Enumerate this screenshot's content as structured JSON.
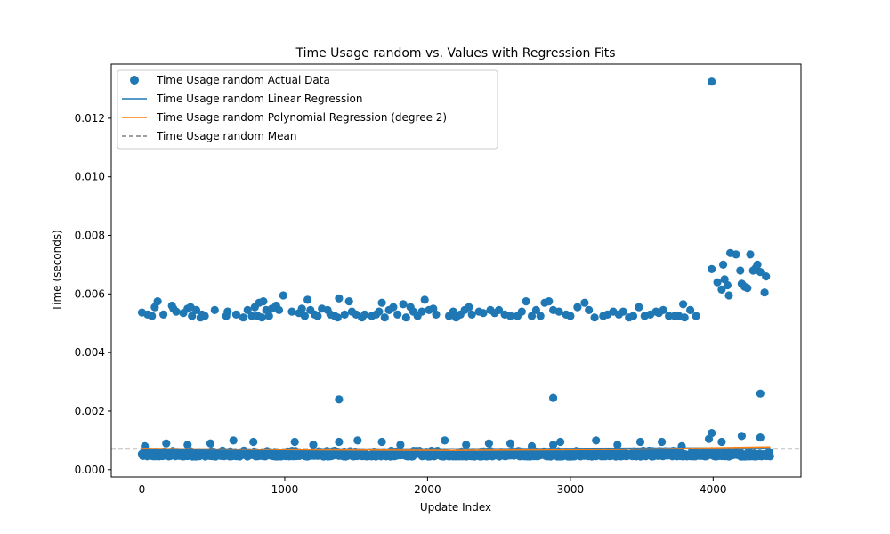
{
  "chart_data": {
    "type": "scatter",
    "title": "Time Usage random vs. Values with Regression Fits",
    "xlabel": "Update Index",
    "ylabel": "Time (seconds)",
    "xlim": [
      -215,
      4615
    ],
    "ylim": [
      -0.00025,
      0.01385
    ],
    "x_ticks": [
      0,
      1000,
      2000,
      3000,
      4000
    ],
    "x_tick_labels": [
      "0",
      "1000",
      "2000",
      "3000",
      "4000"
    ],
    "y_ticks": [
      0.0,
      0.002,
      0.004,
      0.006,
      0.008,
      0.01,
      0.012
    ],
    "y_tick_labels": [
      "0.000",
      "0.002",
      "0.004",
      "0.006",
      "0.008",
      "0.010",
      "0.012"
    ],
    "grid": false,
    "legend_position": "upper-left",
    "legend": [
      {
        "label": "Time Usage random Actual Data",
        "kind": "marker",
        "color": "#1f77b4"
      },
      {
        "label": "Time Usage random Linear Regression",
        "kind": "line",
        "color": "#1f77b4"
      },
      {
        "label": "Time Usage random Polynomial Regression (degree 2)",
        "kind": "line",
        "color": "#ff7f0e"
      },
      {
        "label": "Time Usage random Mean",
        "kind": "dashed",
        "color": "#808080"
      }
    ],
    "series": [
      {
        "name": "Time Usage random Actual Data",
        "kind": "scatter",
        "color": "#1f77b4",
        "upper_cluster": [
          [
            0,
            0.00537
          ],
          [
            40,
            0.0053
          ],
          [
            70,
            0.00525
          ],
          [
            90,
            0.00555
          ],
          [
            110,
            0.00575
          ],
          [
            150,
            0.0053
          ],
          [
            210,
            0.0056
          ],
          [
            220,
            0.0055
          ],
          [
            240,
            0.0054
          ],
          [
            290,
            0.00535
          ],
          [
            320,
            0.0055
          ],
          [
            340,
            0.00555
          ],
          [
            350,
            0.00525
          ],
          [
            380,
            0.00545
          ],
          [
            410,
            0.0052
          ],
          [
            420,
            0.0053
          ],
          [
            440,
            0.00525
          ],
          [
            510,
            0.00545
          ],
          [
            590,
            0.00525
          ],
          [
            600,
            0.0054
          ],
          [
            660,
            0.0053
          ],
          [
            710,
            0.0052
          ],
          [
            740,
            0.00545
          ],
          [
            770,
            0.00525
          ],
          [
            790,
            0.00555
          ],
          [
            810,
            0.00525
          ],
          [
            820,
            0.0057
          ],
          [
            840,
            0.0052
          ],
          [
            850,
            0.00575
          ],
          [
            870,
            0.00545
          ],
          [
            890,
            0.00525
          ],
          [
            910,
            0.0055
          ],
          [
            940,
            0.0056
          ],
          [
            960,
            0.00545
          ],
          [
            990,
            0.00595
          ],
          [
            1050,
            0.0054
          ],
          [
            1100,
            0.00535
          ],
          [
            1120,
            0.0055
          ],
          [
            1140,
            0.00525
          ],
          [
            1160,
            0.0058
          ],
          [
            1180,
            0.00545
          ],
          [
            1210,
            0.0053
          ],
          [
            1230,
            0.00525
          ],
          [
            1260,
            0.0055
          ],
          [
            1300,
            0.00545
          ],
          [
            1320,
            0.0053
          ],
          [
            1350,
            0.00525
          ],
          [
            1370,
            0.0052
          ],
          [
            1380,
            0.00585
          ],
          [
            1420,
            0.0053
          ],
          [
            1450,
            0.00575
          ],
          [
            1470,
            0.0054
          ],
          [
            1500,
            0.0053
          ],
          [
            1540,
            0.0052
          ],
          [
            1560,
            0.0053
          ],
          [
            1610,
            0.00525
          ],
          [
            1640,
            0.0053
          ],
          [
            1660,
            0.0054
          ],
          [
            1680,
            0.0057
          ],
          [
            1700,
            0.0052
          ],
          [
            1730,
            0.00545
          ],
          [
            1760,
            0.00555
          ],
          [
            1790,
            0.0053
          ],
          [
            1830,
            0.00565
          ],
          [
            1850,
            0.0052
          ],
          [
            1880,
            0.00555
          ],
          [
            1900,
            0.0054
          ],
          [
            1930,
            0.00525
          ],
          [
            1960,
            0.0054
          ],
          [
            1980,
            0.0058
          ],
          [
            2010,
            0.00545
          ],
          [
            2040,
            0.0055
          ],
          [
            2060,
            0.0053
          ],
          [
            2150,
            0.00525
          ],
          [
            2180,
            0.0054
          ],
          [
            2200,
            0.0052
          ],
          [
            2230,
            0.0053
          ],
          [
            2260,
            0.00545
          ],
          [
            2290,
            0.00555
          ],
          [
            2310,
            0.0053
          ],
          [
            2360,
            0.0054
          ],
          [
            2390,
            0.00535
          ],
          [
            2440,
            0.00545
          ],
          [
            2470,
            0.00535
          ],
          [
            2500,
            0.00545
          ],
          [
            2540,
            0.0053
          ],
          [
            2580,
            0.00525
          ],
          [
            2630,
            0.00525
          ],
          [
            2660,
            0.0054
          ],
          [
            2690,
            0.00575
          ],
          [
            2730,
            0.00525
          ],
          [
            2760,
            0.00545
          ],
          [
            2790,
            0.00525
          ],
          [
            2820,
            0.0057
          ],
          [
            2850,
            0.00575
          ],
          [
            2880,
            0.00545
          ],
          [
            2920,
            0.0054
          ],
          [
            2970,
            0.0053
          ],
          [
            3000,
            0.00525
          ],
          [
            3050,
            0.00555
          ],
          [
            3100,
            0.0057
          ],
          [
            3130,
            0.00545
          ],
          [
            3170,
            0.0052
          ],
          [
            3230,
            0.00525
          ],
          [
            3260,
            0.0053
          ],
          [
            3300,
            0.0054
          ],
          [
            3340,
            0.0053
          ],
          [
            3370,
            0.0054
          ],
          [
            3410,
            0.0052
          ],
          [
            3440,
            0.00525
          ],
          [
            3480,
            0.00555
          ],
          [
            3520,
            0.00525
          ],
          [
            3560,
            0.0053
          ],
          [
            3600,
            0.0054
          ],
          [
            3620,
            0.00535
          ],
          [
            3650,
            0.00545
          ],
          [
            3690,
            0.00525
          ],
          [
            3730,
            0.00525
          ],
          [
            3760,
            0.00525
          ],
          [
            3790,
            0.00565
          ],
          [
            3800,
            0.0052
          ],
          [
            3840,
            0.00545
          ],
          [
            3880,
            0.00525
          ]
        ],
        "tail_cluster": [
          [
            3990,
            0.00685
          ],
          [
            4030,
            0.0064
          ],
          [
            4060,
            0.00615
          ],
          [
            4070,
            0.007
          ],
          [
            4080,
            0.0065
          ],
          [
            4100,
            0.0063
          ],
          [
            4110,
            0.00595
          ],
          [
            4120,
            0.0074
          ],
          [
            4160,
            0.00735
          ],
          [
            4190,
            0.0068
          ],
          [
            4200,
            0.00635
          ],
          [
            4220,
            0.00625
          ],
          [
            4240,
            0.0062
          ],
          [
            4260,
            0.00735
          ],
          [
            4280,
            0.0068
          ],
          [
            4300,
            0.0069
          ],
          [
            4310,
            0.007
          ],
          [
            4330,
            0.00675
          ],
          [
            4360,
            0.00605
          ],
          [
            4370,
            0.0066
          ]
        ],
        "outliers": [
          [
            3990,
            0.01325
          ],
          [
            1380,
            0.0024
          ],
          [
            2880,
            0.00245
          ],
          [
            4330,
            0.0026
          ]
        ],
        "baseline_band": {
          "x_range": [
            0,
            4400
          ],
          "typical_min": 0.00045,
          "typical_max": 0.00065
        },
        "baseline_spikes": [
          [
            20,
            0.0008
          ],
          [
            170,
            0.0009
          ],
          [
            320,
            0.00085
          ],
          [
            480,
            0.0009
          ],
          [
            640,
            0.001
          ],
          [
            780,
            0.00095
          ],
          [
            1070,
            0.00095
          ],
          [
            1200,
            0.00085
          ],
          [
            1380,
            0.00095
          ],
          [
            1510,
            0.001
          ],
          [
            1680,
            0.00095
          ],
          [
            1810,
            0.00085
          ],
          [
            2120,
            0.001
          ],
          [
            2270,
            0.00085
          ],
          [
            2430,
            0.0009
          ],
          [
            2580,
            0.0009
          ],
          [
            2730,
            0.0008
          ],
          [
            2880,
            0.00085
          ],
          [
            2930,
            0.00095
          ],
          [
            3180,
            0.001
          ],
          [
            3330,
            0.00085
          ],
          [
            3490,
            0.00095
          ],
          [
            3640,
            0.00095
          ],
          [
            3780,
            0.0008
          ],
          [
            3970,
            0.00105
          ],
          [
            3990,
            0.00125
          ],
          [
            4060,
            0.00095
          ],
          [
            4200,
            0.00115
          ],
          [
            4330,
            0.0011
          ]
        ]
      },
      {
        "name": "Time Usage random Linear Regression",
        "kind": "line",
        "color": "#1f77b4",
        "x": [
          0,
          4400
        ],
        "y": [
          0.00068,
          0.00075
        ]
      },
      {
        "name": "Time Usage random Polynomial Regression (degree 2)",
        "kind": "curve",
        "color": "#ff7f0e",
        "x": [
          0,
          1100,
          2200,
          3300,
          4400
        ],
        "y": [
          0.00073,
          0.00068,
          0.00066,
          0.00069,
          0.00078
        ]
      },
      {
        "name": "Time Usage random Mean",
        "kind": "hline",
        "color": "#808080",
        "y": 0.00071
      }
    ]
  }
}
